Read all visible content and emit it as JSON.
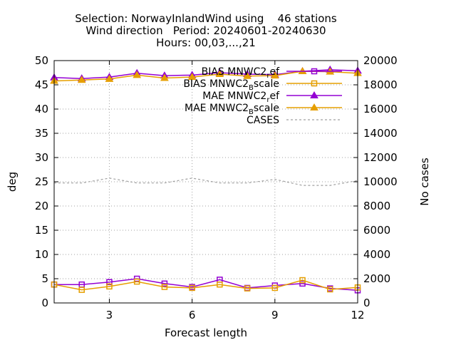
{
  "chart_data": {
    "type": "line",
    "title_lines": [
      "Selection: NorwayInlandWind using    46 stations",
      "Wind direction   Period: 20240601-20240630",
      "Hours: 00,03,...,21"
    ],
    "xlabel": "Forecast length",
    "ylabel": "deg",
    "y2label": "No cases",
    "xlim": [
      1,
      12
    ],
    "ylim": [
      0,
      50
    ],
    "y2lim": [
      0,
      20000
    ],
    "xticks": [
      "3",
      "6",
      "9",
      "12"
    ],
    "yticks": [
      "0",
      "5",
      "10",
      "15",
      "20",
      "25",
      "30",
      "35",
      "40",
      "45",
      "50"
    ],
    "y2ticks": [
      "0",
      "2000",
      "4000",
      "6000",
      "8000",
      "10000",
      "12000",
      "14000",
      "16000",
      "18000",
      "20000"
    ],
    "grid": true,
    "legend_position": "top-right",
    "x": [
      1,
      2,
      3,
      4,
      5,
      6,
      7,
      8,
      9,
      10,
      11,
      12
    ],
    "series": [
      {
        "name_main": "BIAS MNWC2",
        "name_sub": "r",
        "name_tail": "ef",
        "color": "#9400d3",
        "marker": "square",
        "axis": "y",
        "values": [
          3.8,
          3.8,
          4.3,
          5.0,
          4.0,
          3.3,
          4.8,
          3.1,
          3.6,
          4.0,
          3.0,
          2.6
        ]
      },
      {
        "name_main": "BIAS MNWC2",
        "name_sub": "B",
        "name_tail": "scale",
        "color": "#e69f00",
        "marker": "square",
        "axis": "y",
        "values": [
          3.8,
          2.7,
          3.4,
          4.4,
          3.3,
          3.1,
          3.8,
          3.0,
          3.1,
          4.7,
          2.8,
          3.2
        ]
      },
      {
        "name_main": "MAE MNWC2",
        "name_sub": "r",
        "name_tail": "ef",
        "color": "#9400d3",
        "marker": "triangle",
        "axis": "y",
        "values": [
          46.5,
          46.3,
          46.6,
          47.4,
          46.9,
          47.0,
          47.5,
          47.2,
          47.1,
          47.8,
          48.1,
          47.9
        ]
      },
      {
        "name_main": "MAE MNWC2",
        "name_sub": "B",
        "name_tail": "scale",
        "color": "#e69f00",
        "marker": "triangle",
        "axis": "y",
        "values": [
          45.8,
          46.0,
          46.2,
          47.0,
          46.4,
          46.6,
          47.2,
          46.8,
          46.9,
          47.8,
          47.7,
          47.4
        ]
      },
      {
        "name_main": "CASES",
        "name_sub": "",
        "name_tail": "",
        "color": "#a0a0a0",
        "marker": "none",
        "axis": "y2",
        "values": [
          9900,
          9900,
          10300,
          9900,
          9900,
          10300,
          9900,
          9900,
          10200,
          9700,
          9700,
          10100
        ]
      }
    ]
  }
}
